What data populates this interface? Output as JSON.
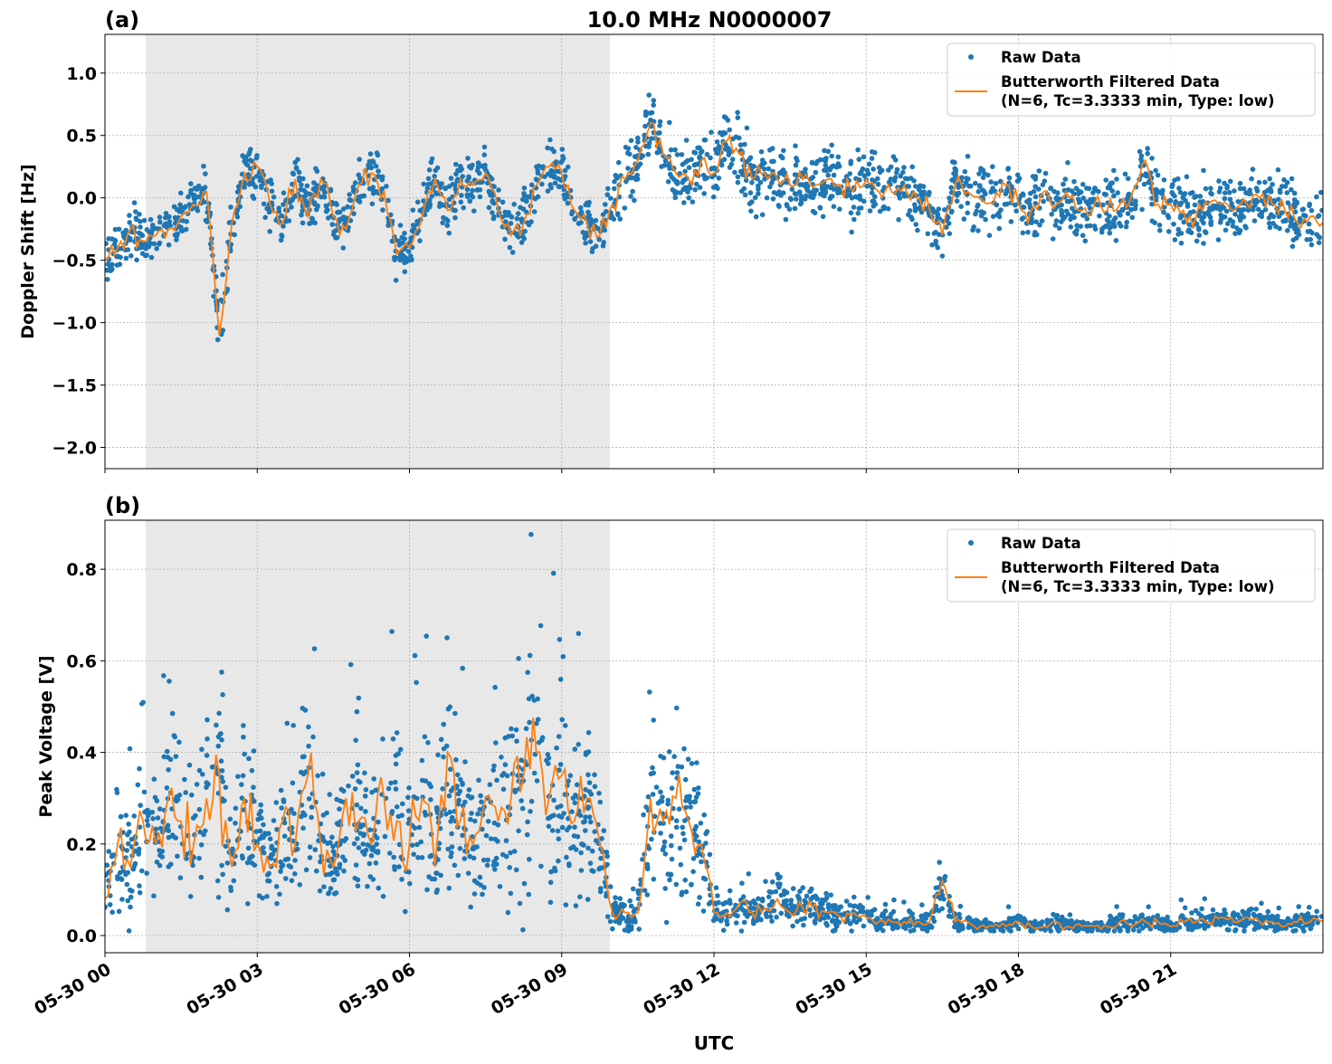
{
  "title": "10.0 MHz N0000007",
  "xlabel": "UTC",
  "x_ticks": [
    "05-30 00",
    "05-30 03",
    "05-30 06",
    "05-30 09",
    "05-30 12",
    "05-30 15",
    "05-30 18",
    "05-30 21"
  ],
  "x_tick_hours": [
    0,
    3,
    6,
    9,
    12,
    15,
    18,
    21
  ],
  "x_range_hours": [
    0,
    24
  ],
  "x_step_hours": 0.25,
  "shaded_interval_hours": [
    0.8,
    9.95
  ],
  "colors": {
    "raw": "#1f77b4",
    "filtered": "#ff7f0e",
    "shade": "#e8e8e8",
    "grid": "#b0b0b0"
  },
  "chart_data": [
    {
      "type": "scatter+line",
      "panel_label": "(a)",
      "ylabel": "Doppler Shift [Hz]",
      "ylim": [
        -2.17,
        1.31
      ],
      "y_ticks": [
        1.0,
        0.5,
        0.0,
        -0.5,
        -1.0,
        -1.5,
        -2.0
      ],
      "y_tick_labels": [
        "1.0",
        "0.5",
        "0.0",
        "−0.5",
        "−1.0",
        "−1.5",
        "−2.0"
      ],
      "grid": true,
      "legend_position": "top-right",
      "legend": [
        "Raw Data",
        "Butterworth Filtered Data",
        "(N=6, Tc=3.3333 min, Type: low)"
      ],
      "raw_spread": 0.22,
      "filtered": [
        -0.5,
        -0.4,
        -0.25,
        -0.35,
        -0.3,
        -0.25,
        -0.15,
        -0.05,
        0.05,
        -1.1,
        -0.2,
        0.2,
        0.25,
        -0.05,
        -0.2,
        0.15,
        -0.15,
        0.15,
        -0.15,
        -0.25,
        0.1,
        0.2,
        0.05,
        -0.45,
        -0.4,
        -0.15,
        0.15,
        -0.1,
        0.15,
        0.1,
        0.2,
        -0.1,
        -0.3,
        -0.2,
        0.1,
        0.25,
        0.2,
        -0.1,
        -0.2,
        -0.3,
        -0.05,
        0.15,
        0.3,
        0.6,
        0.35,
        0.2,
        0.15,
        0.3,
        0.2,
        0.45,
        0.35,
        0.15,
        0.2,
        0.15,
        0.1,
        0.15,
        0.1,
        0.15,
        0.1,
        0.05,
        0.15,
        0.05,
        0.05,
        0.1,
        0.0,
        -0.1,
        -0.3,
        0.1,
        0.05,
        0.0,
        -0.05,
        0.1,
        -0.05,
        -0.1,
        0.05,
        -0.05,
        0.0,
        -0.1,
        -0.05,
        -0.1,
        -0.05,
        0.05,
        0.3,
        -0.05,
        -0.05,
        -0.1,
        -0.15,
        -0.05,
        -0.05,
        -0.1,
        -0.05,
        0.0,
        -0.05,
        -0.1,
        -0.2,
        -0.15,
        -0.2
      ]
    },
    {
      "type": "scatter+line",
      "panel_label": "(b)",
      "ylabel": "Peak Voltage [V]",
      "ylim": [
        -0.0375,
        0.907
      ],
      "y_ticks": [
        0.0,
        0.2,
        0.4,
        0.6,
        0.8
      ],
      "y_tick_labels": [
        "0.0",
        "0.2",
        "0.4",
        "0.6",
        "0.8"
      ],
      "grid": true,
      "legend_position": "top-right",
      "legend": [
        "Raw Data",
        "Butterworth Filtered Data",
        "(N=6, Tc=3.3333 min, Type: low)"
      ],
      "raw_spread": 0.6,
      "filtered": [
        0.08,
        0.2,
        0.15,
        0.25,
        0.2,
        0.3,
        0.25,
        0.2,
        0.3,
        0.35,
        0.15,
        0.3,
        0.2,
        0.15,
        0.25,
        0.2,
        0.35,
        0.2,
        0.15,
        0.3,
        0.25,
        0.2,
        0.3,
        0.25,
        0.2,
        0.3,
        0.15,
        0.4,
        0.25,
        0.2,
        0.3,
        0.25,
        0.3,
        0.35,
        0.4,
        0.3,
        0.35,
        0.25,
        0.3,
        0.2,
        0.05,
        0.05,
        0.05,
        0.3,
        0.25,
        0.3,
        0.25,
        0.2,
        0.05,
        0.05,
        0.07,
        0.05,
        0.06,
        0.08,
        0.05,
        0.06,
        0.07,
        0.05,
        0.04,
        0.05,
        0.04,
        0.03,
        0.03,
        0.03,
        0.03,
        0.03,
        0.12,
        0.03,
        0.03,
        0.02,
        0.02,
        0.02,
        0.03,
        0.02,
        0.02,
        0.03,
        0.02,
        0.02,
        0.02,
        0.02,
        0.03,
        0.02,
        0.03,
        0.03,
        0.02,
        0.03,
        0.03,
        0.03,
        0.04,
        0.03,
        0.04,
        0.03,
        0.03,
        0.02,
        0.03,
        0.03,
        0.03
      ]
    }
  ]
}
